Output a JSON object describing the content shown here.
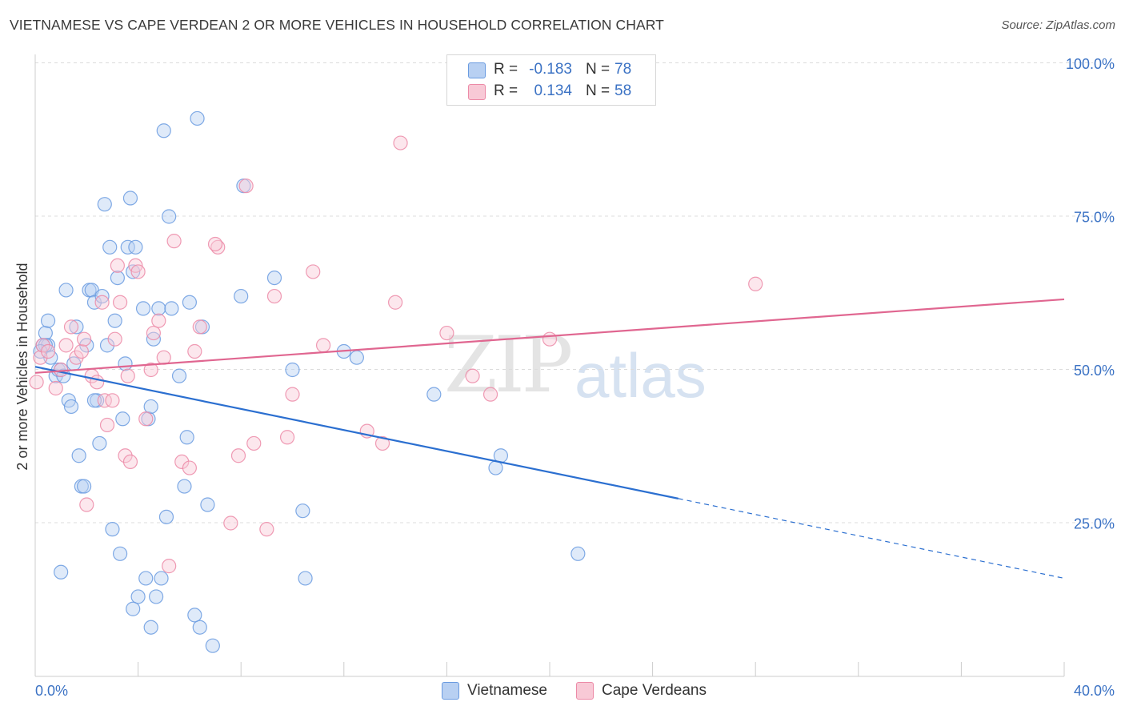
{
  "title": "VIETNAMESE VS CAPE VERDEAN 2 OR MORE VEHICLES IN HOUSEHOLD CORRELATION CHART",
  "source": "Source: ZipAtlas.com",
  "watermark": {
    "zip": "ZIP",
    "atlas": "atlas"
  },
  "legend": {
    "series1": {
      "r_label": "R =",
      "r_value": "-0.183",
      "n_label": "N =",
      "n_value": "78",
      "color": "#a9c6ef"
    },
    "series2": {
      "r_label": "R =",
      "r_value": "0.134",
      "n_label": "N =",
      "n_value": "58",
      "color": "#f5b8c9"
    }
  },
  "bottom_legend": {
    "series1": "Vietnamese",
    "series2": "Cape Verdeans"
  },
  "chart_data": {
    "type": "scatter",
    "title": "VIETNAMESE VS CAPE VERDEAN 2 OR MORE VEHICLES IN HOUSEHOLD CORRELATION CHART",
    "xlabel": "",
    "ylabel": "2 or more Vehicles in Household",
    "xlim": [
      0,
      40
    ],
    "ylim": [
      0,
      100
    ],
    "x_tick_labels": [
      "0.0%",
      "40.0%"
    ],
    "y_tick_labels": [
      "25.0%",
      "50.0%",
      "75.0%",
      "100.0%"
    ],
    "y_ticks": [
      25,
      50,
      75,
      100
    ],
    "grid": true,
    "legend_position": "top-center",
    "series": [
      {
        "name": "Vietnamese",
        "color": "#6a9be0",
        "fill": "#b8d0f2",
        "line_color": "#2b6fd0",
        "trend": {
          "x0": 0,
          "y0": 50.5,
          "x1": 25,
          "y1": 29,
          "dash_to_x": 40,
          "dash_to_y": 16
        },
        "points": [
          [
            0.3,
            54
          ],
          [
            0.4,
            56
          ],
          [
            0.5,
            58
          ],
          [
            0.5,
            54
          ],
          [
            0.6,
            52
          ],
          [
            0.8,
            49
          ],
          [
            0.9,
            50
          ],
          [
            1.0,
            50
          ],
          [
            1.1,
            49
          ],
          [
            1.2,
            63
          ],
          [
            1.3,
            45
          ],
          [
            1.4,
            44
          ],
          [
            1.5,
            51
          ],
          [
            1.6,
            57
          ],
          [
            1.7,
            36
          ],
          [
            1.8,
            31
          ],
          [
            1.9,
            31
          ],
          [
            2.0,
            54
          ],
          [
            2.1,
            63
          ],
          [
            2.2,
            63
          ],
          [
            2.3,
            61
          ],
          [
            2.4,
            45
          ],
          [
            2.5,
            38
          ],
          [
            2.6,
            62
          ],
          [
            2.7,
            77
          ],
          [
            2.8,
            54
          ],
          [
            2.9,
            70
          ],
          [
            3.0,
            24
          ],
          [
            3.1,
            58
          ],
          [
            3.2,
            65
          ],
          [
            3.3,
            20
          ],
          [
            3.4,
            42
          ],
          [
            3.5,
            51
          ],
          [
            3.6,
            70
          ],
          [
            3.7,
            78
          ],
          [
            3.8,
            66
          ],
          [
            3.9,
            70
          ],
          [
            4.0,
            13
          ],
          [
            4.2,
            60
          ],
          [
            4.3,
            16
          ],
          [
            4.4,
            42
          ],
          [
            4.5,
            44
          ],
          [
            4.6,
            55
          ],
          [
            4.7,
            13
          ],
          [
            4.8,
            60
          ],
          [
            5.0,
            89
          ],
          [
            5.1,
            26
          ],
          [
            5.2,
            75
          ],
          [
            5.3,
            60
          ],
          [
            5.6,
            49
          ],
          [
            5.8,
            31
          ],
          [
            5.9,
            39
          ],
          [
            6.0,
            61
          ],
          [
            6.2,
            10
          ],
          [
            6.3,
            91
          ],
          [
            6.4,
            8
          ],
          [
            6.5,
            57
          ],
          [
            6.7,
            28
          ],
          [
            6.9,
            5
          ],
          [
            8.0,
            62
          ],
          [
            8.1,
            80
          ],
          [
            9.3,
            65
          ],
          [
            10.0,
            50
          ],
          [
            10.4,
            27
          ],
          [
            10.5,
            16
          ],
          [
            12.0,
            53
          ],
          [
            12.5,
            52
          ],
          [
            15.5,
            46
          ],
          [
            17.9,
            34
          ],
          [
            18.1,
            36
          ],
          [
            21.1,
            20
          ],
          [
            4.9,
            16
          ],
          [
            0.4,
            54
          ],
          [
            1.0,
            17
          ],
          [
            3.8,
            11
          ],
          [
            4.5,
            8
          ],
          [
            2.3,
            45
          ],
          [
            0.2,
            53
          ]
        ]
      },
      {
        "name": "Cape Verdeans",
        "color": "#ec8aa7",
        "fill": "#f8c9d6",
        "line_color": "#e06690",
        "trend": {
          "x0": 0,
          "y0": 49.5,
          "x1": 40,
          "y1": 61.5
        },
        "points": [
          [
            0.05,
            48
          ],
          [
            0.2,
            52
          ],
          [
            0.3,
            54
          ],
          [
            0.5,
            53
          ],
          [
            0.8,
            47
          ],
          [
            1.0,
            50
          ],
          [
            1.2,
            54
          ],
          [
            1.4,
            57
          ],
          [
            1.6,
            52
          ],
          [
            1.8,
            53
          ],
          [
            1.9,
            55
          ],
          [
            2.0,
            28
          ],
          [
            2.2,
            49
          ],
          [
            2.4,
            48
          ],
          [
            2.6,
            61
          ],
          [
            2.7,
            45
          ],
          [
            2.8,
            41
          ],
          [
            3.0,
            45
          ],
          [
            3.1,
            55
          ],
          [
            3.2,
            67
          ],
          [
            3.3,
            61
          ],
          [
            3.5,
            36
          ],
          [
            3.6,
            49
          ],
          [
            3.7,
            35
          ],
          [
            3.9,
            67
          ],
          [
            4.0,
            66
          ],
          [
            4.3,
            42
          ],
          [
            4.5,
            50
          ],
          [
            4.6,
            56
          ],
          [
            4.8,
            58
          ],
          [
            5.0,
            52
          ],
          [
            5.2,
            18
          ],
          [
            5.4,
            71
          ],
          [
            5.7,
            35
          ],
          [
            6.0,
            34
          ],
          [
            6.2,
            53
          ],
          [
            6.4,
            57
          ],
          [
            7.1,
            70
          ],
          [
            7.6,
            25
          ],
          [
            7.9,
            36
          ],
          [
            8.2,
            80
          ],
          [
            8.5,
            38
          ],
          [
            9.0,
            24
          ],
          [
            9.3,
            62
          ],
          [
            9.8,
            39
          ],
          [
            10.0,
            46
          ],
          [
            10.8,
            66
          ],
          [
            11.2,
            54
          ],
          [
            12.9,
            40
          ],
          [
            13.5,
            38
          ],
          [
            14.0,
            61
          ],
          [
            14.2,
            87
          ],
          [
            16.0,
            56
          ],
          [
            17.0,
            49
          ],
          [
            17.7,
            46
          ],
          [
            20.0,
            55
          ],
          [
            28.0,
            64
          ],
          [
            7.0,
            70.5
          ]
        ]
      }
    ]
  }
}
